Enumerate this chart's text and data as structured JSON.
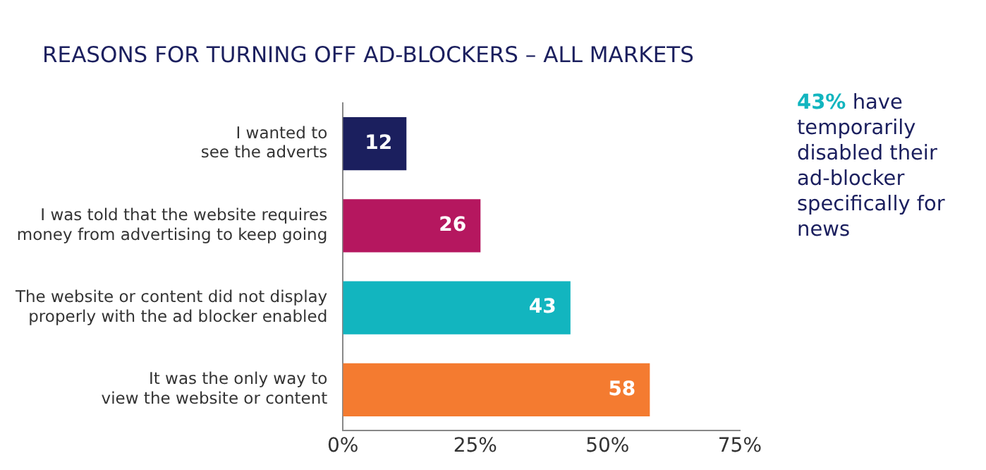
{
  "chart_data": {
    "type": "bar",
    "orientation": "horizontal",
    "title": "REASONS FOR TURNING OFF AD-BLOCKERS – ALL MARKETS",
    "categories": [
      "I wanted to\nsee the adverts",
      "I was told that the website requires\nmoney from advertising to keep going",
      "The website or content did not display\nproperly with the ad blocker enabled",
      "It was the only way to\nview the website or content"
    ],
    "values": [
      12,
      26,
      43,
      58
    ],
    "colors": [
      "#1b1f5e",
      "#b5175f",
      "#12b5bf",
      "#f47b30"
    ],
    "xlim": [
      0,
      75
    ],
    "xticks": [
      {
        "value": 0,
        "label": "0%"
      },
      {
        "value": 25,
        "label": "25%"
      },
      {
        "value": 50,
        "label": "50%"
      },
      {
        "value": 75,
        "label": "75%"
      }
    ],
    "data_labels": true,
    "grid": false,
    "legend": false,
    "annotations": [
      "43% have temporarily disabled their ad-blocker specifically for news"
    ]
  }
}
